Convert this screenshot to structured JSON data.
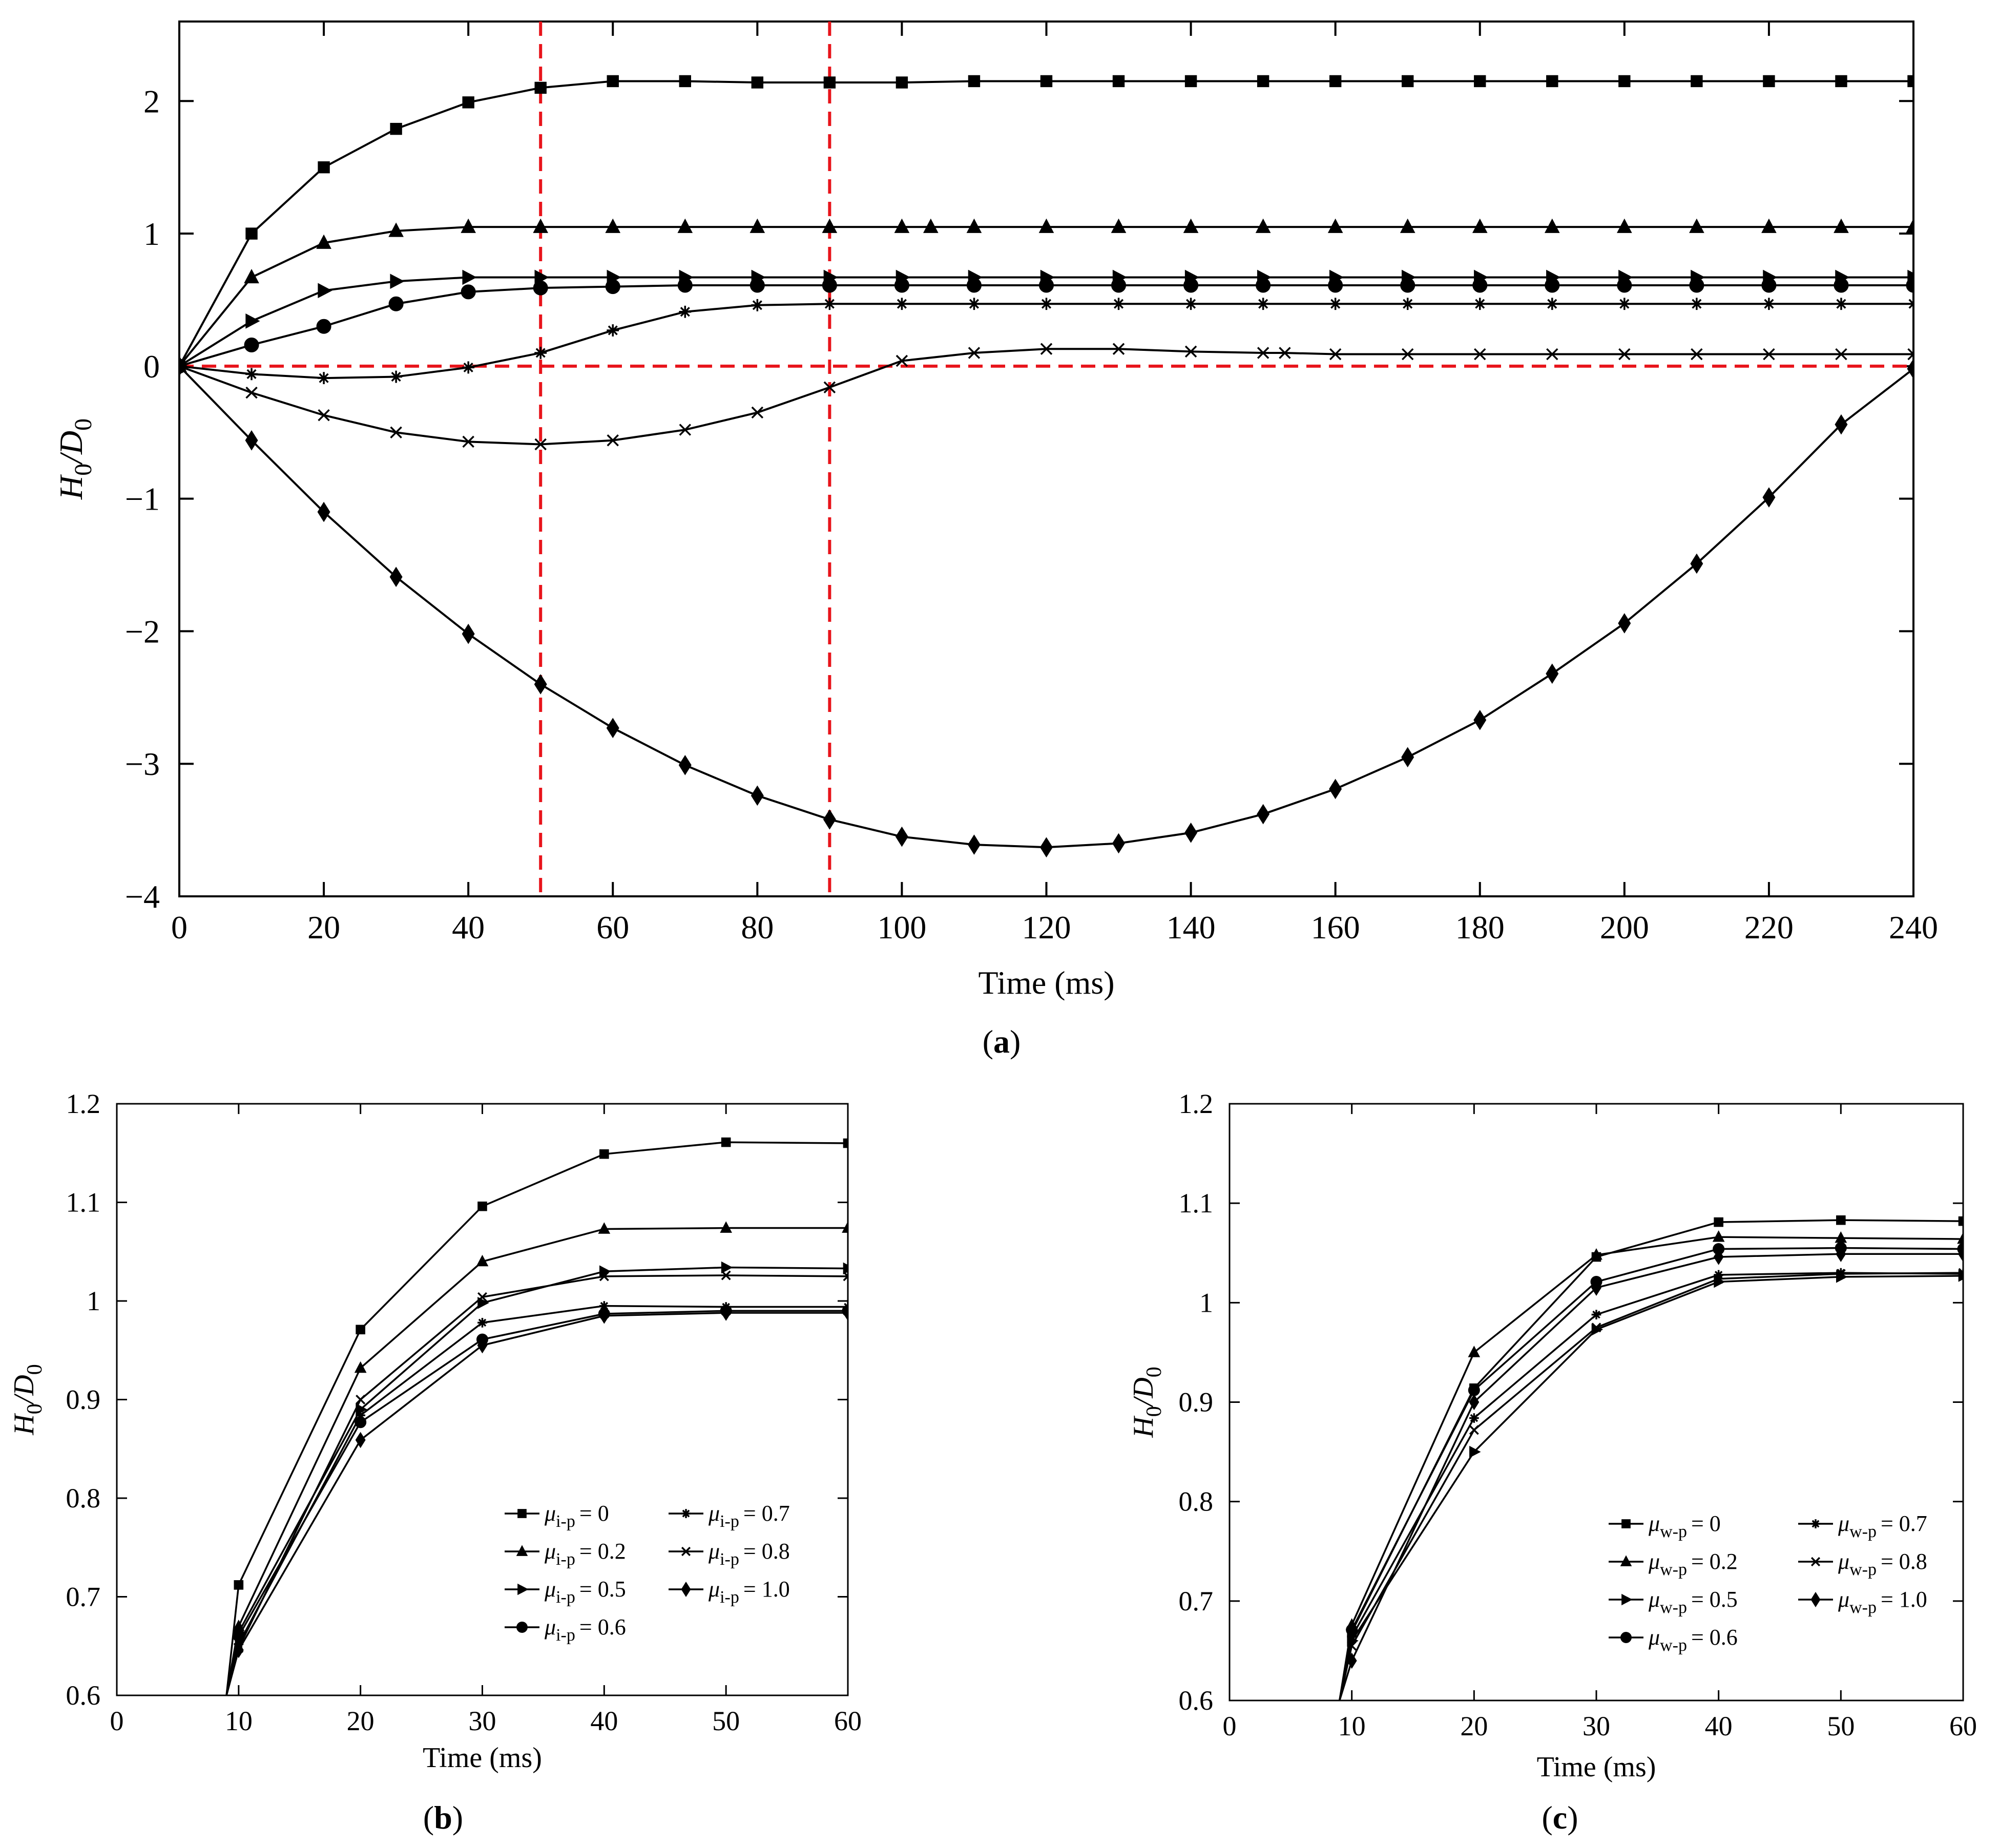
{
  "colors": {
    "ink": "#000000",
    "reference": "#e8141b",
    "background": "#ffffff"
  },
  "chart_data": [
    {
      "id": "a",
      "panel_label": "a",
      "type": "line",
      "xlabel": "Time (ms)",
      "ylabel_main": "H",
      "ylabel_sub": "0",
      "ylabel_div": "/D",
      "ylabel_sub2": "0",
      "xlim": [
        0,
        240
      ],
      "ylim": [
        -4,
        2.6
      ],
      "xticks": [
        0,
        20,
        40,
        60,
        80,
        100,
        120,
        140,
        160,
        180,
        200,
        220,
        240
      ],
      "xtick_labels": [
        "0",
        "20",
        "40",
        "60",
        "80",
        "100",
        "120",
        "140",
        "160",
        "180",
        "200",
        "220",
        "240"
      ],
      "yticks": [
        -4,
        -3,
        -2,
        -1,
        0,
        1,
        2
      ],
      "ytick_labels": [
        "−4",
        "−3",
        "−2",
        "−1",
        "0",
        "1",
        "2"
      ],
      "grid": false,
      "reference_lines": [
        {
          "orientation": "vertical",
          "value": 50,
          "style": "dashed"
        },
        {
          "orientation": "vertical",
          "value": 90,
          "style": "dashed"
        },
        {
          "orientation": "horizontal",
          "value": 0,
          "style": "dashed"
        }
      ],
      "series": [
        {
          "marker": "square",
          "x": [
            0,
            10,
            20,
            30,
            40,
            50,
            60,
            70,
            80,
            90,
            100,
            110,
            120,
            130,
            140,
            150,
            160,
            170,
            180,
            190,
            200,
            210,
            220,
            230,
            240
          ],
          "values": [
            0,
            1.0,
            1.5,
            1.79,
            1.99,
            2.1,
            2.15,
            2.15,
            2.14,
            2.14,
            2.14,
            2.15,
            2.15,
            2.15,
            2.15,
            2.15,
            2.15,
            2.15,
            2.15,
            2.15,
            2.15,
            2.15,
            2.15,
            2.15,
            2.15
          ]
        },
        {
          "marker": "triangle",
          "x": [
            0,
            10,
            20,
            30,
            40,
            50,
            60,
            70,
            80,
            90,
            100,
            104,
            110,
            120,
            130,
            140,
            150,
            160,
            170,
            180,
            190,
            200,
            210,
            220,
            230,
            240
          ],
          "values": [
            0,
            0.67,
            0.93,
            1.02,
            1.05,
            1.05,
            1.05,
            1.05,
            1.05,
            1.05,
            1.05,
            1.05,
            1.05,
            1.05,
            1.05,
            1.05,
            1.05,
            1.05,
            1.05,
            1.05,
            1.05,
            1.05,
            1.05,
            1.05,
            1.05,
            1.05
          ]
        },
        {
          "marker": "right-triangle",
          "x": [
            0,
            10,
            20,
            30,
            40,
            50,
            60,
            70,
            80,
            90,
            100,
            110,
            120,
            130,
            140,
            150,
            160,
            170,
            180,
            190,
            200,
            210,
            220,
            230,
            240
          ],
          "values": [
            0,
            0.34,
            0.57,
            0.64,
            0.67,
            0.67,
            0.67,
            0.67,
            0.67,
            0.67,
            0.67,
            0.67,
            0.67,
            0.67,
            0.67,
            0.67,
            0.67,
            0.67,
            0.67,
            0.67,
            0.67,
            0.67,
            0.67,
            0.67,
            0.67
          ]
        },
        {
          "marker": "circle",
          "x": [
            0,
            10,
            20,
            30,
            40,
            50,
            60,
            70,
            80,
            90,
            100,
            110,
            120,
            130,
            140,
            150,
            160,
            170,
            180,
            190,
            200,
            210,
            220,
            230,
            240
          ],
          "values": [
            0,
            0.16,
            0.3,
            0.47,
            0.56,
            0.59,
            0.6,
            0.61,
            0.61,
            0.61,
            0.61,
            0.61,
            0.61,
            0.61,
            0.61,
            0.61,
            0.61,
            0.61,
            0.61,
            0.61,
            0.61,
            0.61,
            0.61,
            0.61,
            0.61
          ]
        },
        {
          "marker": "star",
          "x": [
            0,
            10,
            20,
            30,
            40,
            50,
            60,
            70,
            80,
            90,
            100,
            110,
            120,
            130,
            140,
            150,
            160,
            170,
            180,
            190,
            200,
            210,
            220,
            230,
            240
          ],
          "values": [
            0,
            -0.06,
            -0.09,
            -0.08,
            -0.01,
            0.1,
            0.27,
            0.41,
            0.46,
            0.47,
            0.47,
            0.47,
            0.47,
            0.47,
            0.47,
            0.47,
            0.47,
            0.47,
            0.47,
            0.47,
            0.47,
            0.47,
            0.47,
            0.47,
            0.47
          ]
        },
        {
          "marker": "cross",
          "x": [
            0,
            10,
            20,
            30,
            40,
            50,
            60,
            70,
            80,
            90,
            100,
            110,
            120,
            130,
            140,
            150,
            153,
            160,
            170,
            180,
            190,
            200,
            210,
            220,
            230,
            240
          ],
          "values": [
            0,
            -0.2,
            -0.37,
            -0.5,
            -0.57,
            -0.59,
            -0.56,
            -0.48,
            -0.35,
            -0.16,
            0.04,
            0.1,
            0.13,
            0.13,
            0.11,
            0.1,
            0.1,
            0.09,
            0.09,
            0.09,
            0.09,
            0.09,
            0.09,
            0.09,
            0.09,
            0.09
          ]
        },
        {
          "marker": "diamond",
          "x": [
            0,
            10,
            20,
            30,
            40,
            50,
            60,
            70,
            80,
            90,
            100,
            110,
            120,
            130,
            140,
            150,
            160,
            170,
            180,
            190,
            200,
            210,
            220,
            230,
            240
          ],
          "values": [
            0,
            -0.56,
            -1.1,
            -1.59,
            -2.02,
            -2.4,
            -2.73,
            -3.01,
            -3.24,
            -3.42,
            -3.55,
            -3.61,
            -3.63,
            -3.6,
            -3.52,
            -3.38,
            -3.19,
            -2.95,
            -2.67,
            -2.32,
            -1.94,
            -1.49,
            -0.99,
            -0.44,
            -0.02
          ]
        }
      ]
    },
    {
      "id": "b",
      "panel_label": "b",
      "type": "line",
      "xlabel": "Time (ms)",
      "ylabel_main": "H",
      "ylabel_sub": "0",
      "ylabel_div": "/D",
      "ylabel_sub2": "0",
      "xlim": [
        0,
        60
      ],
      "ylim": [
        0.6,
        1.2
      ],
      "xticks": [
        0,
        10,
        20,
        30,
        40,
        50,
        60
      ],
      "xtick_labels": [
        "0",
        "10",
        "20",
        "30",
        "40",
        "50",
        "60"
      ],
      "yticks": [
        0.6,
        0.7,
        0.8,
        0.9,
        1.0,
        1.1,
        1.2
      ],
      "ytick_labels": [
        "0.6",
        "0.7",
        "0.8",
        "0.9",
        "1",
        "1.1",
        "1.2"
      ],
      "grid": false,
      "legend_position": "bottom-right",
      "legend_symbol": "μ",
      "legend_sub": "i-p",
      "series": [
        {
          "marker": "square",
          "legend_value": "= 0",
          "x": [
            9,
            10,
            20,
            30,
            40,
            50,
            60
          ],
          "values": [
            0.6,
            0.712,
            0.971,
            1.096,
            1.149,
            1.161,
            1.16
          ]
        },
        {
          "marker": "triangle",
          "legend_value": "= 0.2",
          "x": [
            9,
            10,
            20,
            30,
            40,
            50,
            60
          ],
          "values": [
            0.6,
            0.67,
            0.932,
            1.04,
            1.073,
            1.074,
            1.074
          ]
        },
        {
          "marker": "right-triangle",
          "legend_value": "= 0.5",
          "x": [
            9,
            10,
            20,
            30,
            40,
            50,
            60
          ],
          "values": [
            0.6,
            0.664,
            0.89,
            0.998,
            1.03,
            1.034,
            1.033
          ]
        },
        {
          "marker": "circle",
          "legend_value": "= 0.6",
          "x": [
            9,
            10,
            20,
            30,
            40,
            50,
            60
          ],
          "values": [
            0.6,
            0.66,
            0.877,
            0.961,
            0.987,
            0.99,
            0.99
          ]
        },
        {
          "marker": "star",
          "legend_value": "= 0.7",
          "x": [
            9,
            10,
            20,
            30,
            40,
            50,
            60
          ],
          "values": [
            0.6,
            0.652,
            0.884,
            0.978,
            0.995,
            0.994,
            0.994
          ]
        },
        {
          "marker": "cross",
          "legend_value": "= 0.8",
          "x": [
            9,
            10,
            20,
            30,
            40,
            50,
            60
          ],
          "values": [
            0.6,
            0.648,
            0.9,
            1.004,
            1.025,
            1.026,
            1.025
          ]
        },
        {
          "marker": "diamond",
          "legend_value": "= 1.0",
          "x": [
            9,
            10,
            20,
            30,
            40,
            50,
            60
          ],
          "values": [
            0.6,
            0.646,
            0.859,
            0.955,
            0.985,
            0.988,
            0.988
          ]
        }
      ]
    },
    {
      "id": "c",
      "panel_label": "c",
      "type": "line",
      "xlabel": "Time (ms)",
      "ylabel_main": "H",
      "ylabel_sub": "0",
      "ylabel_div": "/D",
      "ylabel_sub2": "0",
      "xlim": [
        0,
        60
      ],
      "ylim": [
        0.6,
        1.2
      ],
      "xticks": [
        0,
        10,
        20,
        30,
        40,
        50,
        60
      ],
      "xtick_labels": [
        "0",
        "10",
        "20",
        "30",
        "40",
        "50",
        "60"
      ],
      "yticks": [
        0.6,
        0.7,
        0.8,
        0.9,
        1.0,
        1.1,
        1.2
      ],
      "ytick_labels": [
        "0.6",
        "0.7",
        "0.8",
        "0.9",
        "1",
        "1.1",
        "1.2"
      ],
      "grid": false,
      "legend_position": "bottom-right",
      "legend_symbol": "μ",
      "legend_sub": "w-p",
      "series": [
        {
          "marker": "square",
          "legend_value": "= 0",
          "x": [
            9,
            10,
            20,
            30,
            40,
            50,
            60
          ],
          "values": [
            0.6,
            0.669,
            0.914,
            1.046,
            1.081,
            1.083,
            1.082
          ]
        },
        {
          "marker": "triangle",
          "legend_value": "= 0.2",
          "x": [
            9,
            10,
            20,
            30,
            40,
            50,
            60
          ],
          "values": [
            0.6,
            0.676,
            0.95,
            1.048,
            1.066,
            1.065,
            1.064
          ]
        },
        {
          "marker": "right-triangle",
          "legend_value": "= 0.5",
          "x": [
            9,
            10,
            20,
            30,
            40,
            50,
            60
          ],
          "values": [
            0.6,
            0.66,
            0.85,
            0.973,
            1.021,
            1.026,
            1.027
          ]
        },
        {
          "marker": "circle",
          "legend_value": "= 0.6",
          "x": [
            9,
            10,
            20,
            30,
            40,
            50,
            60
          ],
          "values": [
            0.6,
            0.671,
            0.912,
            1.021,
            1.054,
            1.055,
            1.054
          ]
        },
        {
          "marker": "star",
          "legend_value": "= 0.7",
          "x": [
            9,
            10,
            20,
            30,
            40,
            50,
            60
          ],
          "values": [
            0.6,
            0.664,
            0.884,
            0.988,
            1.028,
            1.03,
            1.029
          ]
        },
        {
          "marker": "cross",
          "legend_value": "= 0.8",
          "x": [
            9,
            10,
            20,
            30,
            40,
            50,
            60
          ],
          "values": [
            0.6,
            0.655,
            0.872,
            0.975,
            1.024,
            1.029,
            1.03
          ]
        },
        {
          "marker": "diamond",
          "legend_value": "= 1.0",
          "x": [
            9,
            10,
            20,
            30,
            40,
            50,
            60
          ],
          "values": [
            0.6,
            0.64,
            0.9,
            1.015,
            1.046,
            1.049,
            1.049
          ]
        }
      ]
    }
  ]
}
